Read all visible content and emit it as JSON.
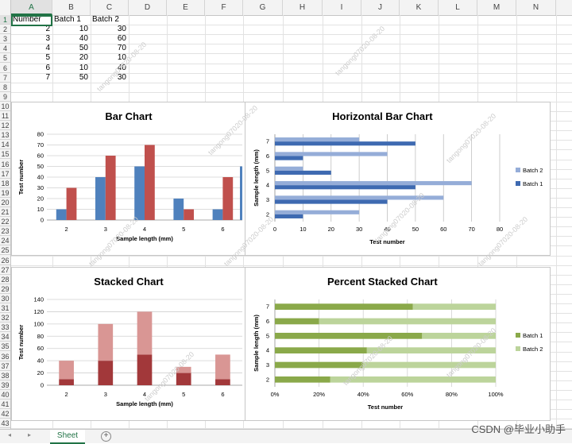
{
  "columns": [
    "A",
    "B",
    "C",
    "D",
    "E",
    "F",
    "G",
    "H",
    "I",
    "J",
    "K",
    "L",
    "M",
    "N"
  ],
  "rows": [
    "1",
    "2",
    "3",
    "4",
    "5",
    "6",
    "7",
    "8",
    "9",
    "10",
    "11",
    "12",
    "13",
    "14",
    "15",
    "16",
    "17",
    "18",
    "19",
    "20",
    "21",
    "22",
    "23",
    "24",
    "25",
    "26",
    "27",
    "28",
    "29",
    "30",
    "31",
    "32",
    "33",
    "34",
    "35",
    "36",
    "37",
    "38",
    "39",
    "40",
    "41",
    "42",
    "43"
  ],
  "sheet": {
    "headers": [
      "Number",
      "Batch 1",
      "Batch 2"
    ],
    "rows": [
      [
        "2",
        "10",
        "30"
      ],
      [
        "3",
        "40",
        "60"
      ],
      [
        "4",
        "50",
        "70"
      ],
      [
        "5",
        "20",
        "10"
      ],
      [
        "6",
        "10",
        "40"
      ],
      [
        "7",
        "50",
        "30"
      ]
    ]
  },
  "tabs": {
    "active": "Sheet",
    "add": "+"
  },
  "watermark": "CSDN @毕业小助手",
  "faint_watermark": "tangong07020-08-20",
  "colors": {
    "blue": "#4f81bd",
    "red": "#c0504d",
    "red_light": "#d99694",
    "red_dark": "#a2383a",
    "hblue_light": "#95add8",
    "hblue_dark": "#3e6ab1",
    "green_dark": "#8aa94a",
    "green_light": "#bcd49b"
  },
  "chart_data": [
    {
      "type": "bar",
      "title": "Bar Chart",
      "xlabel": "Sample length (mm)",
      "ylabel": "Test number",
      "categories": [
        "2",
        "3",
        "4",
        "5",
        "6"
      ],
      "series": [
        {
          "name": "Batch 1",
          "values": [
            10,
            40,
            50,
            20,
            10
          ]
        },
        {
          "name": "Batch 2",
          "values": [
            30,
            60,
            70,
            10,
            40
          ]
        }
      ],
      "ylim": [
        0,
        80
      ],
      "yticks": [
        "0",
        "10",
        "20",
        "30",
        "40",
        "50",
        "60",
        "70",
        "80"
      ]
    },
    {
      "type": "bar",
      "orientation": "horizontal",
      "title": "Horizontal Bar Chart",
      "xlabel": "Test number",
      "ylabel": "Sample length (mm)",
      "categories": [
        "2",
        "3",
        "4",
        "5",
        "6",
        "7"
      ],
      "series": [
        {
          "name": "Batch 1",
          "values": [
            10,
            40,
            50,
            20,
            10,
            50
          ]
        },
        {
          "name": "Batch 2",
          "values": [
            30,
            60,
            70,
            10,
            40,
            30
          ]
        }
      ],
      "xlim": [
        0,
        80
      ],
      "xticks": [
        "0",
        "10",
        "20",
        "30",
        "40",
        "50",
        "60",
        "70",
        "80"
      ],
      "legend": [
        "Batch 2",
        "Batch 1"
      ],
      "legend_position": "right"
    },
    {
      "type": "bar",
      "stacked": true,
      "title": "Stacked Chart",
      "xlabel": "Sample length (mm)",
      "ylabel": "Test number",
      "categories": [
        "2",
        "3",
        "4",
        "5",
        "6"
      ],
      "series": [
        {
          "name": "Batch 1",
          "values": [
            10,
            40,
            50,
            20,
            10
          ]
        },
        {
          "name": "Batch 2",
          "values": [
            30,
            60,
            70,
            10,
            40
          ]
        }
      ],
      "ylim": [
        0,
        140
      ],
      "yticks": [
        "0",
        "20",
        "40",
        "60",
        "80",
        "100",
        "120",
        "140"
      ]
    },
    {
      "type": "bar",
      "orientation": "horizontal",
      "stacked": "percent",
      "title": "Percent Stacked Chart",
      "xlabel": "Test number",
      "ylabel": "Sample length (mm)",
      "categories": [
        "2",
        "3",
        "4",
        "5",
        "6",
        "7"
      ],
      "series": [
        {
          "name": "Batch 1",
          "values": [
            10,
            40,
            50,
            20,
            10,
            50
          ]
        },
        {
          "name": "Batch 2",
          "values": [
            30,
            60,
            70,
            10,
            40,
            30
          ]
        }
      ],
      "xticks": [
        "0%",
        "20%",
        "40%",
        "60%",
        "80%",
        "100%"
      ],
      "legend": [
        "Batch 1",
        "Batch 2"
      ],
      "legend_position": "right"
    }
  ]
}
